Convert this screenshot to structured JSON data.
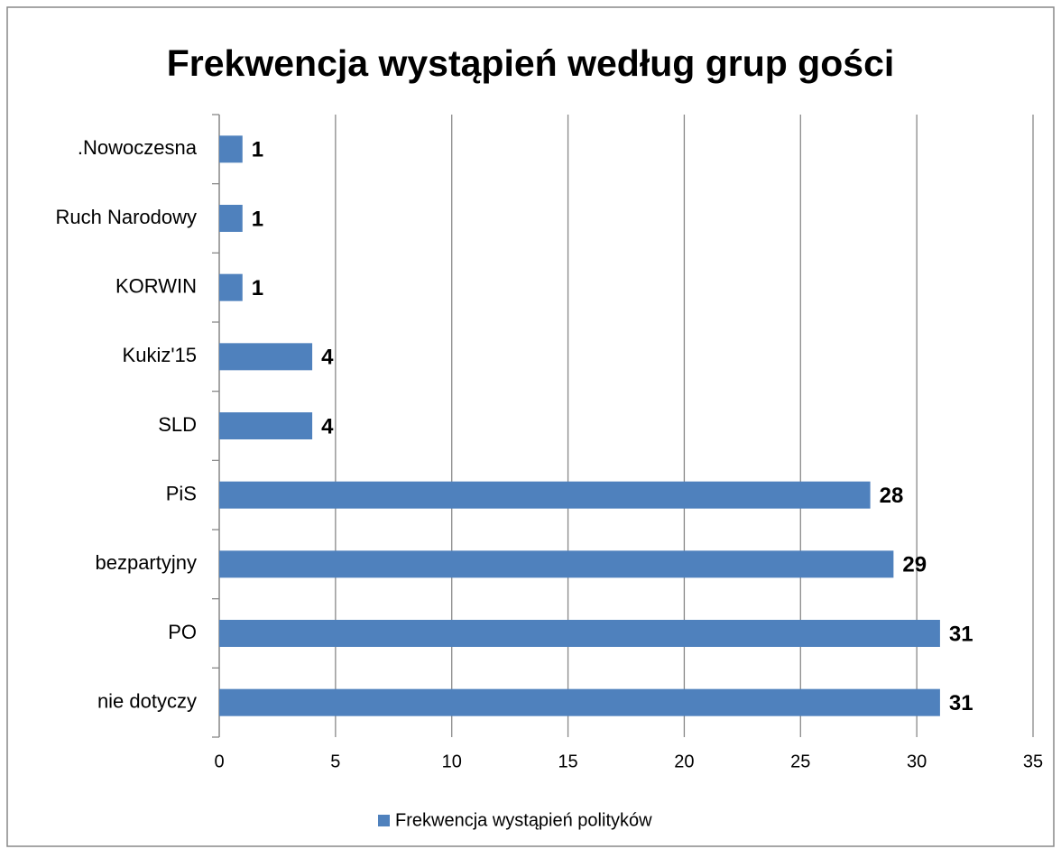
{
  "chart_data": {
    "type": "bar",
    "orientation": "horizontal",
    "title": "Frekwencja wystąpień według grup gości",
    "categories": [
      ".Nowoczesna",
      "Ruch Narodowy",
      "KORWIN",
      "Kukiz'15",
      "SLD",
      "PiS",
      "bezpartyjny",
      "PO",
      "nie dotyczy"
    ],
    "series": [
      {
        "name": "Frekwencja wystąpień polityków",
        "color": "#4f81bd",
        "values": [
          1,
          1,
          1,
          4,
          4,
          28,
          29,
          31,
          31
        ]
      }
    ],
    "xlim": [
      0,
      35
    ],
    "xticks": [
      0,
      5,
      10,
      15,
      20,
      25,
      30,
      35
    ],
    "grid": true,
    "legend": "bottom"
  }
}
